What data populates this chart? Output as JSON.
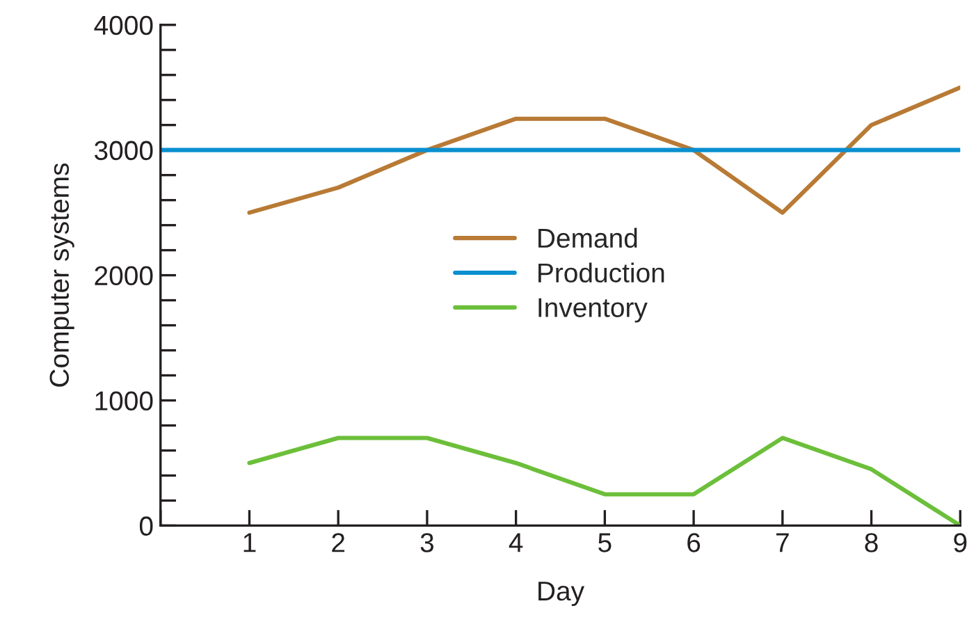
{
  "chart_data": {
    "type": "line",
    "xlabel": "Day",
    "ylabel": "Computer systems",
    "xlim": [
      0,
      9
    ],
    "xticks": [
      {
        "value": 0,
        "label": null
      },
      1,
      2,
      3,
      4,
      5,
      6,
      7,
      8,
      9
    ],
    "ylim": [
      0,
      4000
    ],
    "yticks": [
      0,
      {
        "value": 200,
        "label": null
      },
      {
        "value": 400,
        "label": null
      },
      {
        "value": 600,
        "label": null
      },
      {
        "value": 800,
        "label": null
      },
      1000,
      {
        "value": 1200,
        "label": null
      },
      {
        "value": 1400,
        "label": null
      },
      {
        "value": 1600,
        "label": null
      },
      {
        "value": 1800,
        "label": null
      },
      2000,
      {
        "value": 2200,
        "label": null
      },
      {
        "value": 2400,
        "label": null
      },
      {
        "value": 2600,
        "label": null
      },
      {
        "value": 2800,
        "label": null
      },
      3000,
      {
        "value": 3200,
        "label": null
      },
      {
        "value": 3400,
        "label": null
      },
      {
        "value": 3600,
        "label": null
      },
      {
        "value": 3800,
        "label": null
      },
      4000
    ],
    "series": [
      {
        "name": "Demand",
        "color": "#b87a35",
        "x": [
          1,
          2,
          3,
          4,
          5,
          6,
          7,
          8,
          9
        ],
        "values": [
          2500,
          2700,
          3000,
          3250,
          3250,
          3000,
          2500,
          3200,
          3500
        ]
      },
      {
        "name": "Production",
        "color": "#0a8fd0",
        "x": [
          0,
          9
        ],
        "values": [
          3000,
          3000
        ]
      },
      {
        "name": "Inventory",
        "color": "#6cbf3a",
        "x": [
          1,
          2,
          3,
          4,
          5,
          6,
          7,
          8,
          9
        ],
        "values": [
          500,
          700,
          700,
          500,
          250,
          250,
          700,
          450,
          0
        ]
      }
    ],
    "legend": "center",
    "grid": false,
    "marker": "none",
    "line_style": "solid"
  }
}
